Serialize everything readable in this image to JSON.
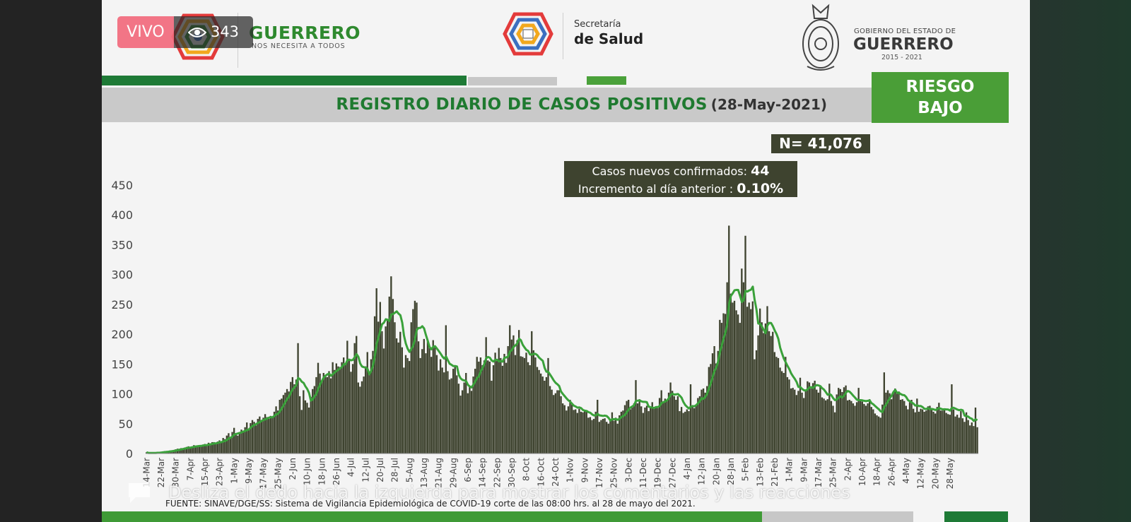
{
  "live": {
    "badge": "VIVO",
    "viewers": "343",
    "eye_icon": "eye-icon"
  },
  "header": {
    "left_brand": "GUERRERO",
    "left_tagline": "NOS NECESITA A TODOS",
    "mid_small": "Secretaría",
    "mid_main": "de Salud",
    "right_small": "GOBIERNO DEL ESTADO DE",
    "right_main": "GUERRERO",
    "right_years": "2015 - 2021"
  },
  "title": {
    "main": "REGISTRO DIARIO DE CASOS POSITIVOS",
    "date": "(28-May-2021)"
  },
  "risk": {
    "line1": "RIESGO",
    "line2": "BAJO"
  },
  "total": "N= 41,076",
  "summary": {
    "line1_label": "Casos nuevos confirmados:",
    "line1_value": "44",
    "line2_label": "Incremento al día anterior :",
    "line2_value": "0.10%"
  },
  "footer": "FUENTE: SINAVE/DGE/SS: Sistema de Vigilancia Epidemiológica de COVID-19 corte de las 08:00 hrs. al 28 de mayo del 2021.",
  "overlay": {
    "text": "Desliza el dedo hacia la izquierda para mostrar los comentarios y las reacciones",
    "icon": "chat-bubble-icon"
  },
  "colors": {
    "bars": "#3e432f",
    "line": "#3aa13a",
    "accent_green": "#1e7a36",
    "risk_green": "#4a9e37"
  },
  "chart_data": {
    "type": "bar",
    "ylim": [
      0,
      450
    ],
    "yticks": [
      0,
      50,
      100,
      150,
      200,
      250,
      300,
      350,
      400,
      450
    ],
    "x_start": "2020-03-14",
    "x_end": "2021-05-28",
    "xticks": [
      "14-Mar",
      "22-Mar",
      "30-Mar",
      "7-Apr",
      "15-Apr",
      "23-Apr",
      "1-May",
      "9-May",
      "17-May",
      "25-May",
      "2-Jun",
      "10-Jun",
      "18-Jun",
      "26-Jun",
      "4-Jul",
      "12-Jul",
      "20-Jul",
      "28-Jul",
      "5-Aug",
      "13-Aug",
      "21-Aug",
      "29-Aug",
      "6-Sep",
      "14-Sep",
      "22-Sep",
      "30-Sep",
      "8-Oct",
      "16-Oct",
      "24-Oct",
      "1-Nov",
      "9-Nov",
      "17-Nov",
      "25-Nov",
      "3-Dec",
      "11-Dec",
      "19-Dec",
      "27-Dec",
      "4-Jan",
      "12-Jan",
      "20-Jan",
      "28-Jan",
      "5-Feb",
      "13-Feb",
      "21-Feb",
      "1-Mar",
      "9-Mar",
      "17-Mar",
      "25-Mar",
      "2-Apr",
      "10-Apr",
      "18-Apr",
      "26-Apr",
      "4-May",
      "12-May",
      "20-May",
      "28-May"
    ],
    "series": [
      {
        "name": "",
        "values": [
          2,
          0,
          1,
          1,
          1,
          1,
          2,
          2,
          3,
          3,
          4,
          4,
          3,
          5,
          5,
          6,
          7,
          8,
          8,
          9,
          9,
          10,
          11,
          12,
          10,
          12,
          14,
          13,
          13,
          14,
          13,
          15,
          16,
          14,
          18,
          17,
          19,
          19,
          16,
          20,
          22,
          20,
          26,
          24,
          30,
          34,
          28,
          36,
          43,
          34,
          30,
          36,
          40,
          38,
          44,
          52,
          41,
          51,
          56,
          53,
          47,
          58,
          62,
          55,
          60,
          66,
          61,
          58,
          63,
          62,
          70,
          79,
          72,
          90,
          92,
          98,
          102,
          108,
          104,
          120,
          128,
          116,
          124,
          185,
          96,
          73,
          106,
          89,
          85,
          77,
          95,
          108,
          113,
          128,
          152,
          134,
          120,
          135,
          131,
          128,
          138,
          126,
          153,
          140,
          151,
          146,
          145,
          153,
          161,
          151,
          189,
          157,
          137,
          150,
          185,
          197,
          119,
          112,
          121,
          129,
          146,
          170,
          132,
          158,
          172,
          230,
          277,
          221,
          254,
          205,
          176,
          213,
          223,
          263,
          297,
          259,
          220,
          193,
          186,
          204,
          178,
          144,
          165,
          160,
          155,
          220,
          242,
          256,
          253,
          188,
          160,
          175,
          192,
          168,
          188,
          178,
          162,
          190,
          181,
          165,
          139,
          158,
          144,
          136,
          215,
          138,
          124,
          126,
          142,
          145,
          131,
          117,
          97,
          106,
          119,
          135,
          101,
          112,
          105,
          129,
          142,
          162,
          154,
          161,
          148,
          156,
          195,
          156,
          154,
          122,
          148,
          169,
          155,
          177,
          160,
          147,
          167,
          152,
          180,
          215,
          191,
          198,
          165,
          190,
          207,
          163,
          162,
          160,
          169,
          153,
          148,
          205,
          173,
          161,
          145,
          140,
          134,
          129,
          122,
          128,
          160,
          113,
          107,
          98,
          101,
          106,
          106,
          96,
          84,
          81,
          72,
          79,
          90,
          82,
          73,
          74,
          68,
          75,
          70,
          69,
          73,
          70,
          60,
          61,
          56,
          58,
          70,
          90,
          53,
          56,
          58,
          59,
          53,
          50,
          58,
          69,
          55,
          60,
          50,
          64,
          70,
          72,
          81,
          88,
          90,
          74,
          77,
          84,
          123,
          84,
          91,
          79,
          68,
          77,
          80,
          71,
          76,
          86,
          76,
          79,
          76,
          93,
          106,
          87,
          92,
          90,
          102,
          119,
          105,
          96,
          90,
          96,
          71,
          78,
          68,
          70,
          74,
          71,
          116,
          79,
          76,
          81,
          93,
          96,
          107,
          109,
          102,
          113,
          145,
          150,
          168,
          180,
          151,
          172,
          224,
          219,
          235,
          234,
          287,
          382,
          268,
          253,
          256,
          240,
          233,
          219,
          310,
          287,
          365,
          246,
          253,
          242,
          255,
          158,
          173,
          198,
          243,
          220,
          202,
          218,
          247,
          205,
          197,
          204,
          170,
          162,
          160,
          144,
          138,
          135,
          162,
          128,
          124,
          109,
          110,
          107,
          98,
          105,
          127,
          102,
          93,
          107,
          121,
          119,
          109,
          118,
          122,
          107,
          102,
          114,
          94,
          92,
          89,
          91,
          117,
          88,
          80,
          69,
          99,
          110,
          108,
          103,
          111,
          114,
          89,
          90,
          88,
          84,
          80,
          86,
          110,
          88,
          87,
          83,
          80,
          84,
          91,
          78,
          74,
          67,
          64,
          62,
          60,
          82,
          136,
          102,
          106,
          101,
          91,
          102,
          109,
          100,
          104,
          90,
          91,
          88,
          80,
          74,
          86,
          90,
          75,
          69,
          92,
          70,
          75,
          74,
          70,
          72,
          79,
          80,
          73,
          70,
          67,
          78,
          85,
          72,
          72,
          75,
          68,
          66,
          65,
          116,
          74,
          62,
          65,
          60,
          71,
          59,
          53,
          69,
          56,
          47,
          52,
          46,
          77,
          44
        ]
      },
      {
        "name": "",
        "kind": "line",
        "values": []
      }
    ]
  }
}
